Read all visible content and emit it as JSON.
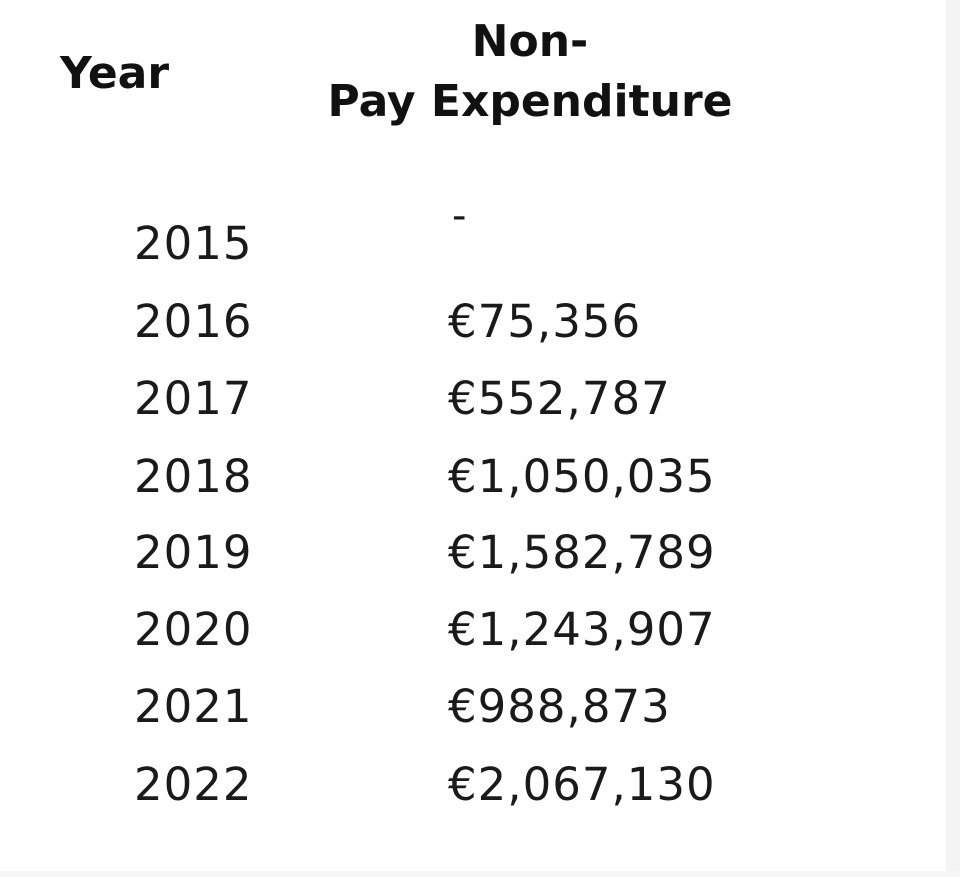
{
  "table": {
    "headers": {
      "year": "Year",
      "expenditure_line1": "Non-",
      "expenditure_line2": "Pay Expenditure"
    },
    "rows": [
      {
        "year": "2015",
        "value": "-"
      },
      {
        "year": "2016",
        "value": "€75,356"
      },
      {
        "year": "2017",
        "value": "€552,787"
      },
      {
        "year": "2018",
        "value": "€1,050,035"
      },
      {
        "year": "2019",
        "value": "€1,582,789"
      },
      {
        "year": "2020",
        "value": "€1,243,907"
      },
      {
        "year": "2021",
        "value": "€988,873"
      },
      {
        "year": "2022",
        "value": "€2,067,130"
      }
    ]
  }
}
